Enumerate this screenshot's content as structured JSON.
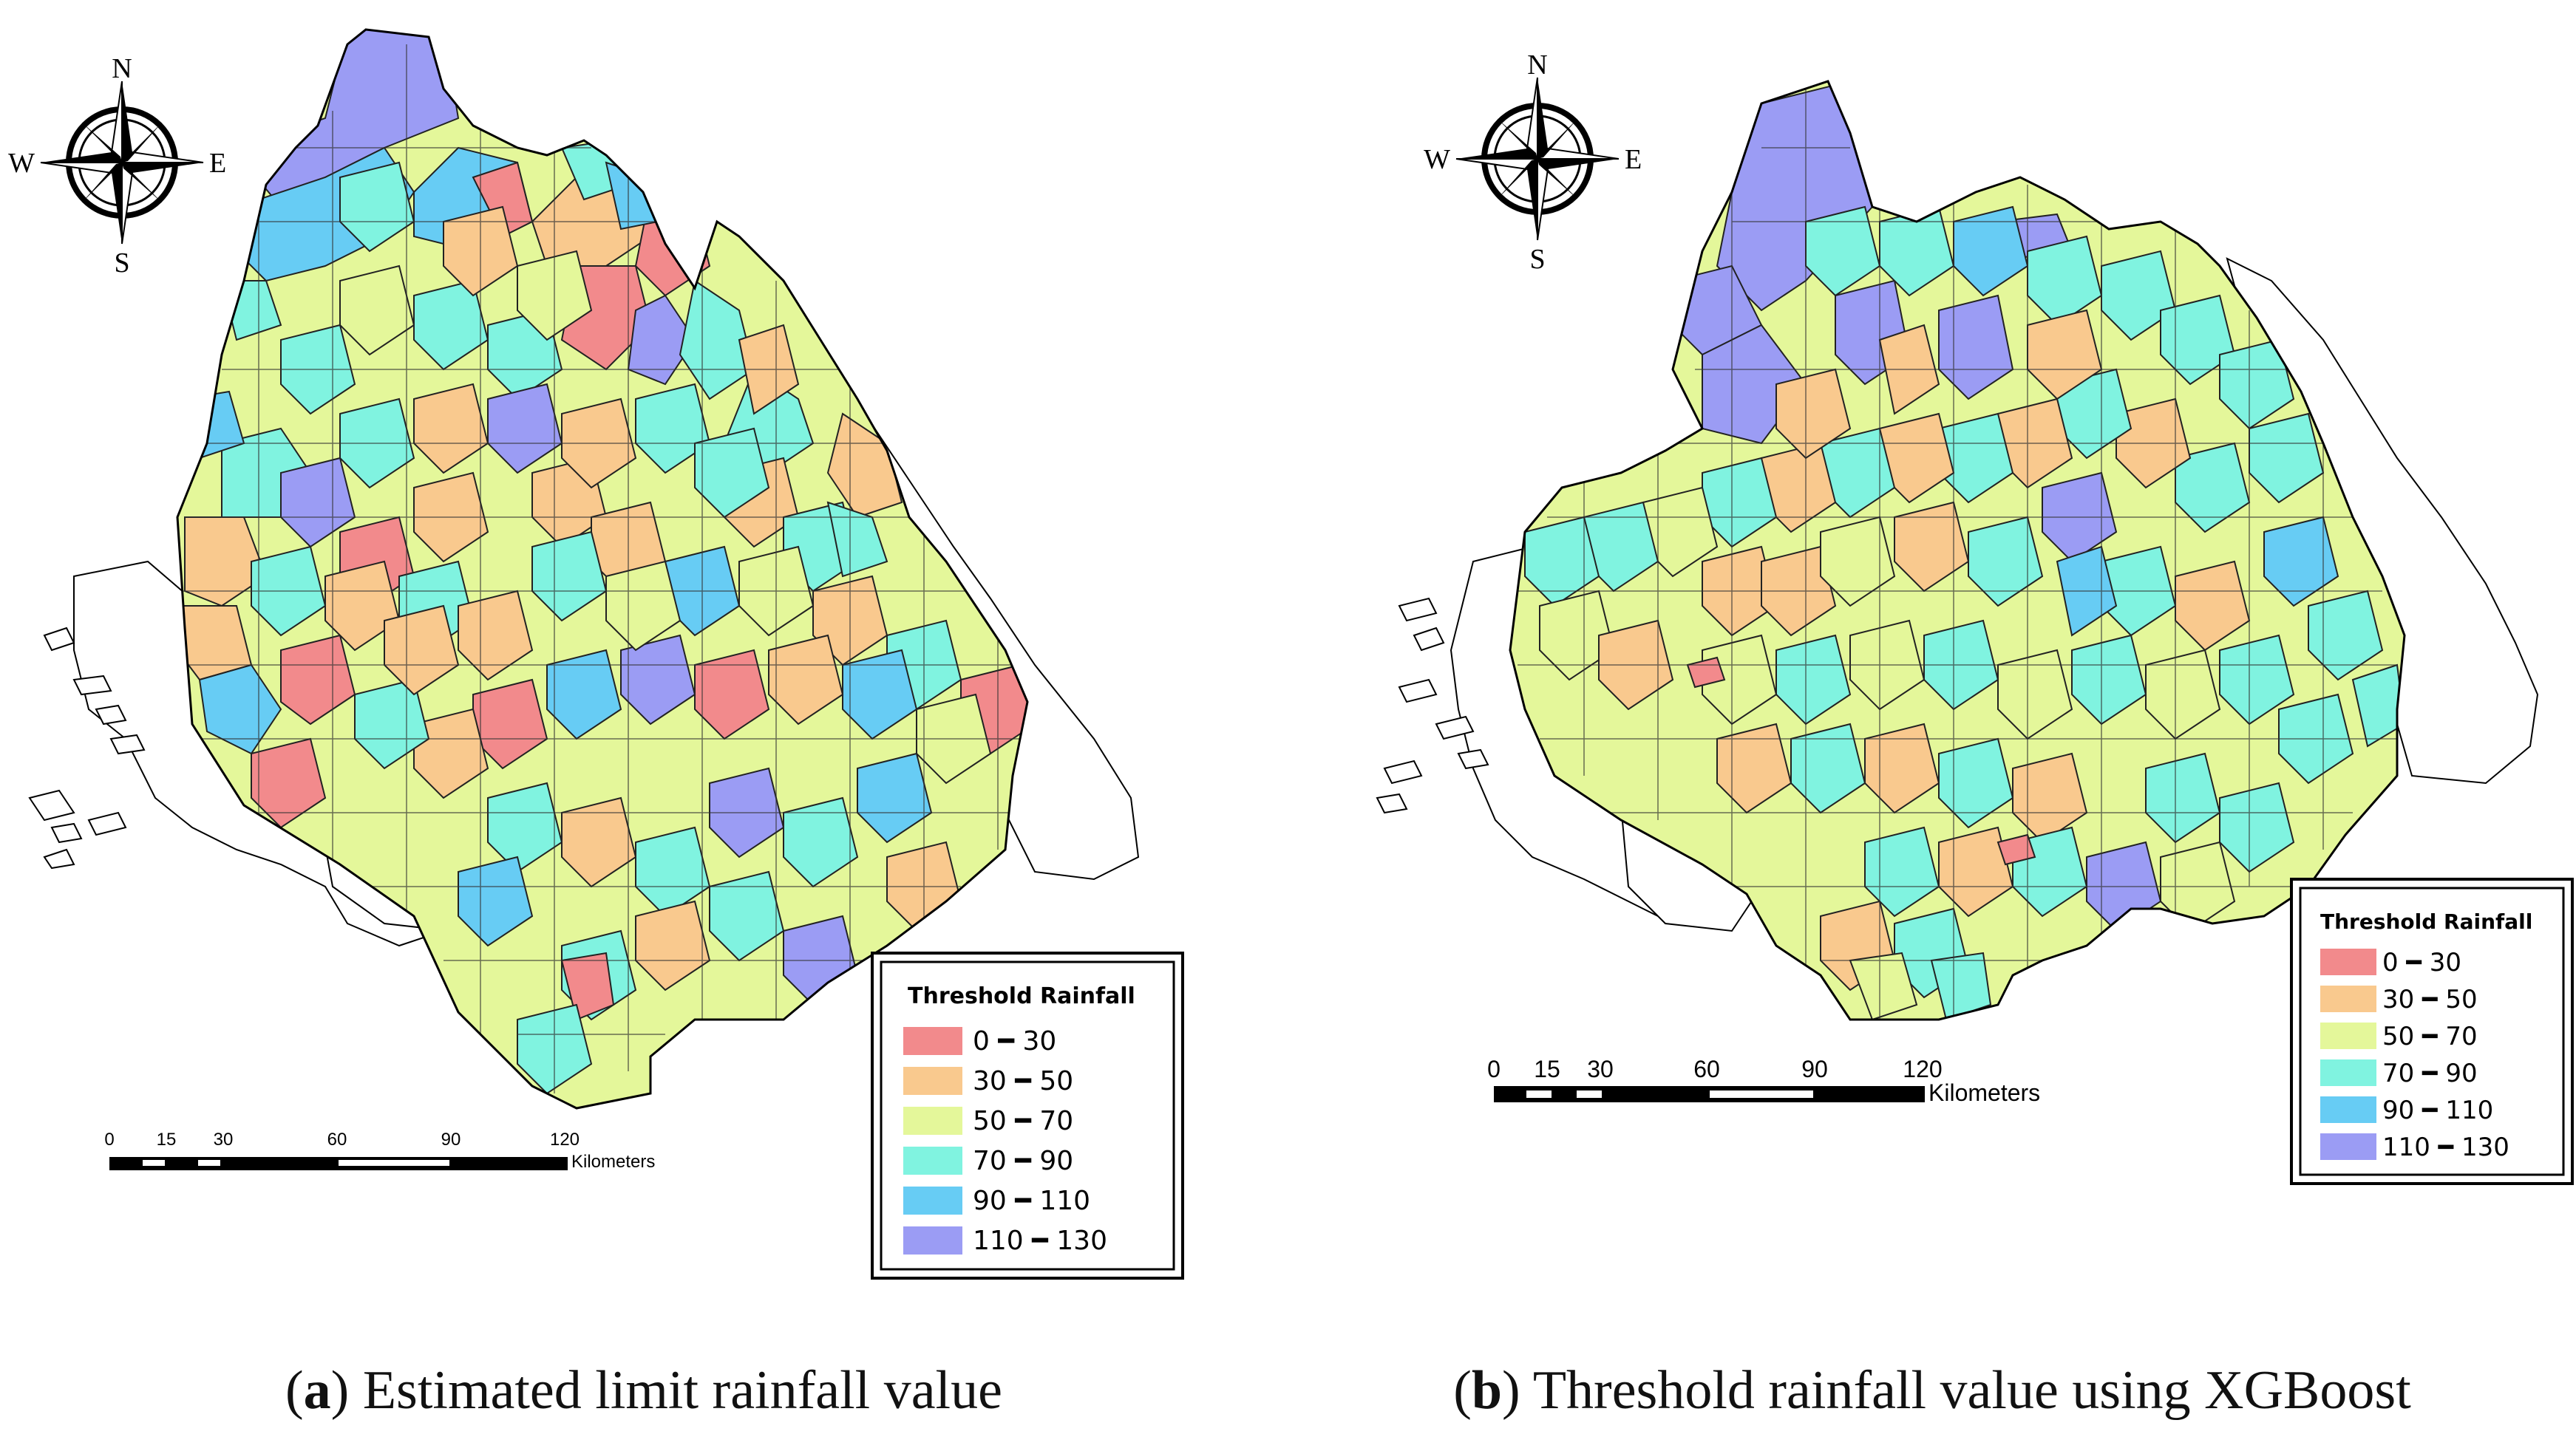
{
  "panels": [
    {
      "id": "a",
      "caption_letter": "a",
      "caption_text": "Estimated limit rainfall value",
      "compass": {
        "n": "N",
        "s": "S",
        "e": "E",
        "w": "W"
      },
      "legend": {
        "title": "Threshold Rainfall",
        "items": [
          {
            "label": "0 ━ 30",
            "color": "#f28a8c"
          },
          {
            "label": "30 ━ 50",
            "color": "#f9c98e"
          },
          {
            "label": "50 ━ 70",
            "color": "#e4f79a"
          },
          {
            "label": "70 ━ 90",
            "color": "#80f3e0"
          },
          {
            "label": "90 ━ 110",
            "color": "#67ccf4"
          },
          {
            "label": "110 ━ 130",
            "color": "#9b9cf4"
          }
        ]
      },
      "scalebar": {
        "ticks": [
          "0",
          "15",
          "30",
          "60",
          "90",
          "120"
        ],
        "unit": "Kilometers"
      }
    },
    {
      "id": "b",
      "caption_letter": "b",
      "caption_text": "Threshold rainfall value using XGBoost",
      "compass": {
        "n": "N",
        "s": "S",
        "e": "E",
        "w": "W"
      },
      "legend": {
        "title": "Threshold Rainfall",
        "items": [
          {
            "label": "0 ━ 30",
            "color": "#f28a8c"
          },
          {
            "label": "30 ━ 50",
            "color": "#f9c98e"
          },
          {
            "label": "50 ━ 70",
            "color": "#e4f79a"
          },
          {
            "label": "70 ━ 90",
            "color": "#80f3e0"
          },
          {
            "label": "90 ━ 110",
            "color": "#67ccf4"
          },
          {
            "label": "110 ━ 130",
            "color": "#9b9cf4"
          }
        ]
      },
      "scalebar": {
        "ticks": [
          "0",
          "15",
          "30",
          "60",
          "90",
          "120"
        ],
        "unit": "Kilometers"
      }
    }
  ]
}
